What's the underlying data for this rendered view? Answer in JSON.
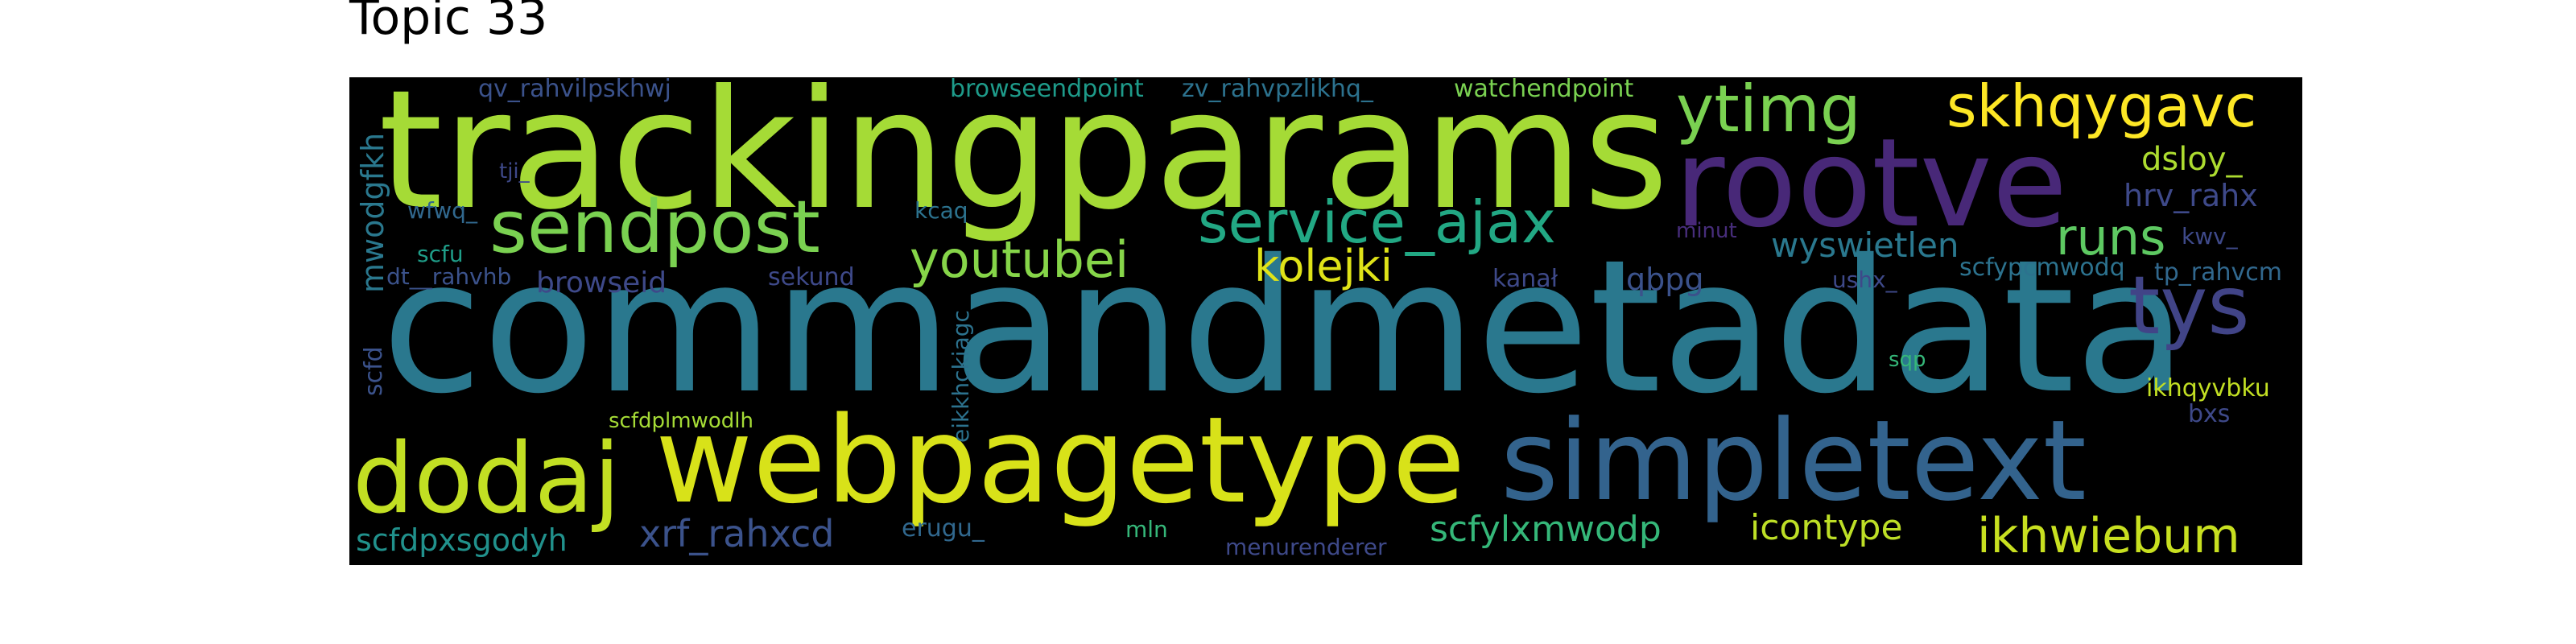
{
  "title": "Topic 33",
  "colors": {
    "background": "#000000",
    "page": "#ffffff"
  },
  "words": [
    {
      "text": "trackingparams",
      "color": "#a5db36"
    },
    {
      "text": "commandmetadata",
      "color": "#2a788e"
    },
    {
      "text": "rootve",
      "color": "#482878"
    },
    {
      "text": "webpagetype",
      "color": "#d8e219"
    },
    {
      "text": "simpletext",
      "color": "#33638d"
    },
    {
      "text": "sendpost",
      "color": "#7ad151"
    },
    {
      "text": "dodaj",
      "color": "#c2df23"
    },
    {
      "text": "service_ajax",
      "color": "#22a884"
    },
    {
      "text": "tys",
      "color": "#414487"
    },
    {
      "text": "ytimg",
      "color": "#7ad151"
    },
    {
      "text": "skhqygavc",
      "color": "#fde725"
    },
    {
      "text": "youtubei",
      "color": "#86d549"
    },
    {
      "text": "kolejki",
      "color": "#dfe318"
    },
    {
      "text": "runs",
      "color": "#5ec962"
    },
    {
      "text": "wyswietlen",
      "color": "#2a788e"
    },
    {
      "text": "ikhwiebum",
      "color": "#c8e020"
    },
    {
      "text": "xrf_rahxcd",
      "color": "#3b528b"
    },
    {
      "text": "scfylxmwodp",
      "color": "#35b779"
    },
    {
      "text": "icontype",
      "color": "#bddf26"
    },
    {
      "text": "scfdpxsgodyh",
      "color": "#21918c"
    },
    {
      "text": "dsloy_",
      "color": "#addc30"
    },
    {
      "text": "hrv_rahx",
      "color": "#3e4989"
    },
    {
      "text": "qbpg",
      "color": "#3b528b"
    },
    {
      "text": "browseid",
      "color": "#3e4989"
    },
    {
      "text": "sekund",
      "color": "#3e4989"
    },
    {
      "text": "browseendpoint",
      "color": "#1e9b8a"
    },
    {
      "text": "zv_rahvpzlikhq_",
      "color": "#2c728e"
    },
    {
      "text": "watchendpoint",
      "color": "#7ad151"
    },
    {
      "text": "qv_rahvilpskhwj",
      "color": "#3b528b"
    },
    {
      "text": "tji_",
      "color": "#3e4989"
    },
    {
      "text": "wfwq_",
      "color": "#31688e"
    },
    {
      "text": "kcaq",
      "color": "#2c728e"
    },
    {
      "text": "scfu",
      "color": "#1f9e89"
    },
    {
      "text": "dt__rahvhb",
      "color": "#3b528b"
    },
    {
      "text": "mwodgfkh",
      "color": "#2a788e"
    },
    {
      "text": "scfd",
      "color": "#3b528b"
    },
    {
      "text": "eikkhckiagc",
      "color": "#2c728e"
    },
    {
      "text": "scfdplmwodlh",
      "color": "#a5db36"
    },
    {
      "text": "erugu_",
      "color": "#31688e"
    },
    {
      "text": "mln",
      "color": "#35b779"
    },
    {
      "text": "menurenderer",
      "color": "#3e4989"
    },
    {
      "text": "kanał",
      "color": "#3e4989"
    },
    {
      "text": "minut",
      "color": "#472d7b"
    },
    {
      "text": "ushx_",
      "color": "#3e4989"
    },
    {
      "text": "scfypcmwodq",
      "color": "#2c728e"
    },
    {
      "text": "kwv_",
      "color": "#3e4989"
    },
    {
      "text": "tp_rahvcm",
      "color": "#31688e"
    },
    {
      "text": "sqp",
      "color": "#35b779"
    },
    {
      "text": "ikhqyvbku",
      "color": "#c2df23"
    },
    {
      "text": "bxs",
      "color": "#3e4989"
    }
  ]
}
